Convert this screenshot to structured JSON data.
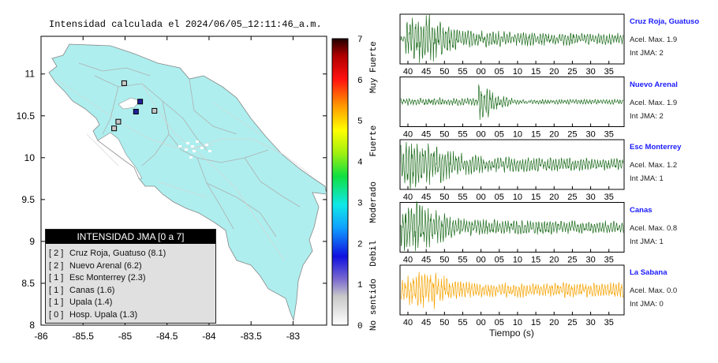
{
  "map_title": "Intensidad calculada el 2024/06/05_12:11:46_a.m.",
  "lon_ticks": [
    -86,
    -85.5,
    -85,
    -84.5,
    -84,
    -83.5,
    -83
  ],
  "lat_ticks": [
    8,
    8.5,
    9,
    9.5,
    10,
    10.5,
    11
  ],
  "colorbar": {
    "ticks": [
      "0",
      "1",
      "2",
      "3",
      "4",
      "5",
      "6",
      "7"
    ],
    "categories": [
      "No sentido",
      "Debil",
      "Moderado",
      "Fuerte",
      "Muy Fuerte"
    ]
  },
  "legend": {
    "header": "INTENSIDAD JMA [0 a 7]",
    "items": [
      {
        "level": "[ 2 ]",
        "label": "Cruz Roja, Guatuso (8.1)"
      },
      {
        "level": "[ 2 ]",
        "label": "Nuevo Arenal (6.2)"
      },
      {
        "level": "[ 1 ]",
        "label": "Esc Monterrey (2.3)"
      },
      {
        "level": "[ 1 ]",
        "label": "Canas (1.6)"
      },
      {
        "level": "[ 1 ]",
        "label": "Upala (1.4)"
      },
      {
        "level": "[ 0 ]",
        "label": "Hosp. Upala (1.3)"
      }
    ]
  },
  "stations_on_map": [
    {
      "lon": -84.82,
      "lat": 10.67,
      "intensity": 2,
      "color": "#2020a0"
    },
    {
      "lon": -84.87,
      "lat": 10.55,
      "intensity": 2,
      "color": "#2020a0"
    },
    {
      "lon": -84.65,
      "lat": 10.56,
      "intensity": 1,
      "color": "#c8c8c8"
    },
    {
      "lon": -85.08,
      "lat": 10.43,
      "intensity": 1,
      "color": "#c8c8c8"
    },
    {
      "lon": -85.01,
      "lat": 10.89,
      "intensity": 1,
      "color": "#c8c8c8"
    },
    {
      "lon": -85.13,
      "lat": 10.35,
      "intensity": 0,
      "color": "#c8c8c8"
    }
  ],
  "waveforms": [
    {
      "name": "Cruz Roja, Guatuso",
      "acel": "Acel. Max. 1.9",
      "jma": "Int JMA: 2",
      "color": "#1f6e1f",
      "ticks": [
        "40",
        "45",
        "50",
        "55",
        "00",
        "05",
        "10",
        "15",
        "20",
        "25",
        "30",
        "35"
      ]
    },
    {
      "name": "Nuevo Arenal",
      "acel": "Acel. Max. 1.9",
      "jma": "Int JMA: 2",
      "color": "#1f6e1f",
      "ticks": [
        "40",
        "45",
        "50",
        "55",
        "00",
        "05",
        "10",
        "15",
        "20",
        "25",
        "30",
        "35"
      ]
    },
    {
      "name": "Esc Monterrey",
      "acel": "Acel. Max. 1.2",
      "jma": "Int JMA: 1",
      "color": "#1f6e1f",
      "ticks": [
        "40",
        "45",
        "50",
        "55",
        "00",
        "05",
        "10",
        "15",
        "20",
        "25",
        "30",
        "35"
      ]
    },
    {
      "name": "Canas",
      "acel": "Acel. Max. 0.8",
      "jma": "Int JMA: 1",
      "color": "#1f6e1f",
      "ticks": [
        "40",
        "45",
        "50",
        "55",
        "00",
        "05",
        "10",
        "15",
        "20",
        "25",
        "30",
        "35"
      ]
    },
    {
      "name": "La Sabana",
      "acel": "Acel. Max. 0.0",
      "jma": "Int JMA: 0",
      "color": "#f5a300",
      "ticks": [
        "40",
        "45",
        "50",
        "55",
        "00",
        "05",
        "10",
        "15",
        "20",
        "25",
        "30",
        "35"
      ]
    }
  ],
  "xlabel": "Tiempo (s)"
}
